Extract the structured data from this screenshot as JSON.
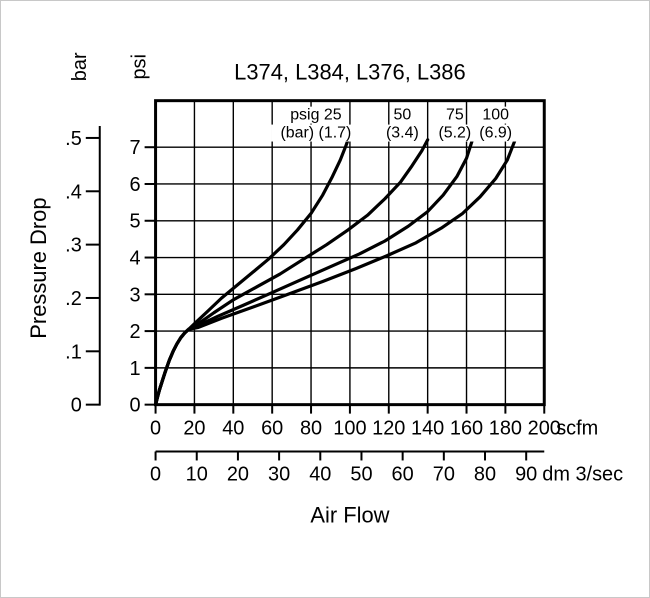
{
  "chart_data": {
    "type": "line",
    "title": "L374, L384, L376, L386",
    "xlabel": "Air Flow",
    "ylabel": "Pressure Drop",
    "grid": true,
    "legend_position": "inside-top",
    "axes": {
      "psi": {
        "unit": "psi",
        "min": 0,
        "max": 8.27,
        "ticks": [
          0,
          1,
          2,
          3,
          4,
          5,
          6,
          7
        ],
        "tick_labels": [
          "0",
          "1",
          "2",
          "3",
          "4",
          "5",
          "6",
          "7"
        ]
      },
      "bar": {
        "unit": "bar",
        "ticks": [
          0,
          0.1,
          0.2,
          0.3,
          0.4,
          0.5
        ],
        "tick_labels": [
          "0",
          ".1",
          ".2",
          ".3",
          ".4",
          ".5"
        ],
        "psi_per_bar": 14.504
      },
      "scfm": {
        "unit": "scfm",
        "min": 0,
        "max": 200,
        "ticks": [
          0,
          20,
          40,
          60,
          80,
          100,
          120,
          140,
          160,
          180,
          200
        ],
        "tick_labels": [
          "0",
          "20",
          "40",
          "60",
          "80",
          "100",
          "120",
          "140",
          "160",
          "180",
          "200"
        ]
      },
      "dm3s": {
        "unit": "dm 3/sec",
        "ticks": [
          0,
          10,
          20,
          30,
          40,
          50,
          60,
          70,
          80,
          90
        ],
        "tick_labels": [
          "0",
          "10",
          "20",
          "30",
          "40",
          "50",
          "60",
          "70",
          "80",
          "90"
        ],
        "scfm_per_dm3s": 2.1189
      }
    },
    "series": [
      {
        "id": "psig-25",
        "name": "25 psig (1.7 bar) inlet",
        "label_lines": [
          "psig 25",
          "(bar) (1.7)"
        ],
        "label_x_scfm": 82.5,
        "points": [
          [
            0,
            0
          ],
          [
            1,
            0.2
          ],
          [
            2,
            0.4
          ],
          [
            3.5,
            0.65
          ],
          [
            5,
            0.9
          ],
          [
            7,
            1.2
          ],
          [
            9,
            1.45
          ],
          [
            11,
            1.65
          ],
          [
            13,
            1.82
          ],
          [
            15,
            1.95
          ],
          [
            17,
            2.05
          ],
          [
            21,
            2.25
          ],
          [
            27,
            2.55
          ],
          [
            34,
            2.9
          ],
          [
            42,
            3.25
          ],
          [
            50,
            3.6
          ],
          [
            58,
            3.95
          ],
          [
            66,
            4.35
          ],
          [
            73,
            4.75
          ],
          [
            80,
            5.2
          ],
          [
            86,
            5.7
          ],
          [
            91,
            6.2
          ],
          [
            95,
            6.65
          ],
          [
            98,
            7.05
          ],
          [
            99,
            7.2
          ]
        ]
      },
      {
        "id": "psig-50",
        "name": "50 psig (3.4 bar) inlet",
        "label_lines": [
          "50",
          "(3.4)"
        ],
        "label_x_scfm": 127,
        "points": [
          [
            0,
            0
          ],
          [
            1,
            0.2
          ],
          [
            2,
            0.4
          ],
          [
            3.5,
            0.65
          ],
          [
            5,
            0.9
          ],
          [
            7,
            1.2
          ],
          [
            9,
            1.45
          ],
          [
            11,
            1.65
          ],
          [
            13,
            1.82
          ],
          [
            15,
            1.95
          ],
          [
            17,
            2.05
          ],
          [
            22,
            2.2
          ],
          [
            30,
            2.5
          ],
          [
            40,
            2.85
          ],
          [
            52,
            3.2
          ],
          [
            64,
            3.55
          ],
          [
            76,
            3.95
          ],
          [
            88,
            4.35
          ],
          [
            99,
            4.75
          ],
          [
            109,
            5.15
          ],
          [
            118,
            5.6
          ],
          [
            126,
            6.05
          ],
          [
            132,
            6.5
          ],
          [
            137,
            6.9
          ],
          [
            140,
            7.2
          ]
        ]
      },
      {
        "id": "psig-75",
        "name": "75 psig (5.2 bar) inlet",
        "label_lines": [
          "75",
          "(5.2)"
        ],
        "label_x_scfm": 154,
        "points": [
          [
            0,
            0
          ],
          [
            1,
            0.2
          ],
          [
            2,
            0.4
          ],
          [
            3.5,
            0.65
          ],
          [
            5,
            0.9
          ],
          [
            7,
            1.2
          ],
          [
            9,
            1.45
          ],
          [
            11,
            1.65
          ],
          [
            13,
            1.82
          ],
          [
            15,
            1.95
          ],
          [
            17,
            2.05
          ],
          [
            22,
            2.15
          ],
          [
            32,
            2.4
          ],
          [
            45,
            2.7
          ],
          [
            60,
            3.05
          ],
          [
            75,
            3.4
          ],
          [
            90,
            3.75
          ],
          [
            105,
            4.1
          ],
          [
            118,
            4.45
          ],
          [
            130,
            4.85
          ],
          [
            140,
            5.25
          ],
          [
            148,
            5.7
          ],
          [
            155,
            6.2
          ],
          [
            160,
            6.7
          ],
          [
            163,
            7.2
          ]
        ]
      },
      {
        "id": "psig-100",
        "name": "100 psig (6.9 bar) inlet",
        "label_lines": [
          "100",
          "(6.9)"
        ],
        "label_x_scfm": 175,
        "points": [
          [
            0,
            0
          ],
          [
            1,
            0.2
          ],
          [
            2,
            0.4
          ],
          [
            3.5,
            0.65
          ],
          [
            5,
            0.9
          ],
          [
            7,
            1.2
          ],
          [
            9,
            1.45
          ],
          [
            11,
            1.65
          ],
          [
            13,
            1.82
          ],
          [
            15,
            1.95
          ],
          [
            17,
            2.05
          ],
          [
            22,
            2.1
          ],
          [
            34,
            2.35
          ],
          [
            50,
            2.65
          ],
          [
            68,
            3.0
          ],
          [
            86,
            3.35
          ],
          [
            103,
            3.7
          ],
          [
            119,
            4.05
          ],
          [
            134,
            4.4
          ],
          [
            147,
            4.8
          ],
          [
            158,
            5.2
          ],
          [
            167,
            5.65
          ],
          [
            175,
            6.15
          ],
          [
            181,
            6.65
          ],
          [
            185,
            7.2
          ]
        ]
      }
    ]
  }
}
